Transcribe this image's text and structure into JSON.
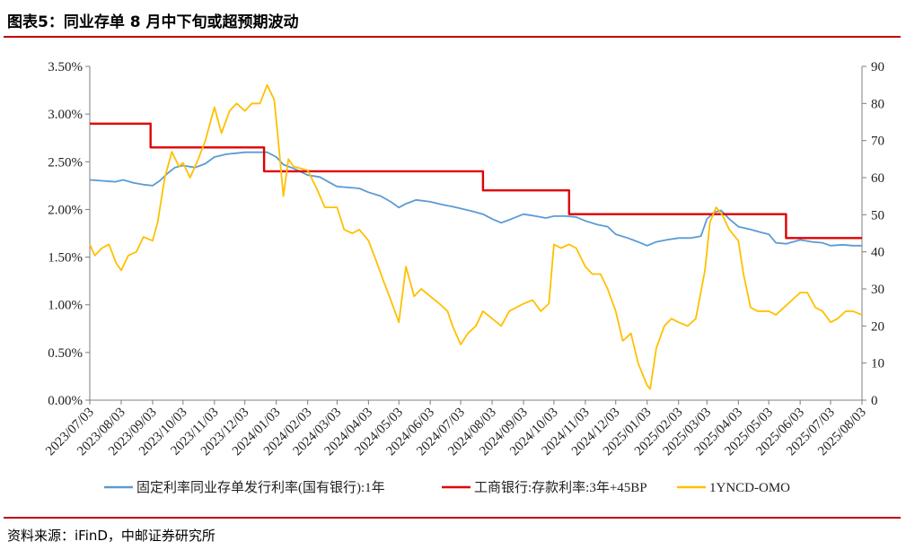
{
  "figure": {
    "title": "图表5：同业存单 8 月中下旬或超预期波动",
    "source": "资料来源：iFinD，中邮证券研究所"
  },
  "chart_data": {
    "type": "line",
    "x_range": [
      "2023-07-03",
      "2025-08-03"
    ],
    "x_ticks": [
      "2023/07/03",
      "2023/08/03",
      "2023/09/03",
      "2023/10/03",
      "2023/11/03",
      "2023/12/03",
      "2024/01/03",
      "2024/02/03",
      "2024/03/03",
      "2024/04/03",
      "2024/05/03",
      "2024/06/03",
      "2024/07/03",
      "2024/08/03",
      "2024/09/03",
      "2024/10/03",
      "2024/11/03",
      "2024/12/03",
      "2025/01/03",
      "2025/02/03",
      "2025/03/03",
      "2025/04/03",
      "2025/05/03",
      "2025/06/03",
      "2025/07/03",
      "2025/08/03"
    ],
    "y_left": {
      "min": 0,
      "max": 3.5,
      "ticks": [
        "0.00%",
        "0.50%",
        "1.00%",
        "1.50%",
        "2.00%",
        "2.50%",
        "3.00%",
        "3.50%"
      ]
    },
    "y_right": {
      "min": 0,
      "max": 90,
      "ticks": [
        "0",
        "10",
        "20",
        "30",
        "40",
        "50",
        "60",
        "70",
        "80",
        "90"
      ]
    },
    "grid": false,
    "legend_position": "bottom",
    "series": [
      {
        "name": "固定利率同业存单发行利率(国有银行):1年",
        "axis": "left",
        "color": "#5b9bd5",
        "points": [
          [
            "2023-07-03",
            2.31
          ],
          [
            "2023-07-15",
            2.3
          ],
          [
            "2023-07-28",
            2.29
          ],
          [
            "2023-08-05",
            2.31
          ],
          [
            "2023-08-15",
            2.28
          ],
          [
            "2023-08-25",
            2.26
          ],
          [
            "2023-09-03",
            2.25
          ],
          [
            "2023-09-10",
            2.3
          ],
          [
            "2023-09-18",
            2.38
          ],
          [
            "2023-09-25",
            2.44
          ],
          [
            "2023-10-03",
            2.46
          ],
          [
            "2023-10-15",
            2.44
          ],
          [
            "2023-10-25",
            2.48
          ],
          [
            "2023-11-03",
            2.55
          ],
          [
            "2023-11-15",
            2.58
          ],
          [
            "2023-11-25",
            2.59
          ],
          [
            "2023-12-03",
            2.6
          ],
          [
            "2023-12-15",
            2.6
          ],
          [
            "2023-12-25",
            2.6
          ],
          [
            "2024-01-03",
            2.55
          ],
          [
            "2024-01-10",
            2.47
          ],
          [
            "2024-01-20",
            2.43
          ],
          [
            "2024-02-03",
            2.36
          ],
          [
            "2024-02-15",
            2.34
          ],
          [
            "2024-02-25",
            2.28
          ],
          [
            "2024-03-03",
            2.24
          ],
          [
            "2024-03-15",
            2.23
          ],
          [
            "2024-03-25",
            2.22
          ],
          [
            "2024-04-03",
            2.18
          ],
          [
            "2024-04-15",
            2.14
          ],
          [
            "2024-04-25",
            2.08
          ],
          [
            "2024-05-03",
            2.02
          ],
          [
            "2024-05-10",
            2.06
          ],
          [
            "2024-05-20",
            2.1
          ],
          [
            "2024-06-03",
            2.08
          ],
          [
            "2024-06-15",
            2.05
          ],
          [
            "2024-06-25",
            2.03
          ],
          [
            "2024-07-03",
            2.01
          ],
          [
            "2024-07-15",
            1.98
          ],
          [
            "2024-07-25",
            1.95
          ],
          [
            "2024-08-03",
            1.9
          ],
          [
            "2024-08-12",
            1.86
          ],
          [
            "2024-08-22",
            1.9
          ],
          [
            "2024-09-03",
            1.95
          ],
          [
            "2024-09-15",
            1.93
          ],
          [
            "2024-09-25",
            1.91
          ],
          [
            "2024-10-03",
            1.93
          ],
          [
            "2024-10-15",
            1.93
          ],
          [
            "2024-10-25",
            1.92
          ],
          [
            "2024-11-03",
            1.88
          ],
          [
            "2024-11-15",
            1.84
          ],
          [
            "2024-11-25",
            1.82
          ],
          [
            "2024-12-03",
            1.74
          ],
          [
            "2024-12-15",
            1.7
          ],
          [
            "2024-12-25",
            1.66
          ],
          [
            "2025-01-03",
            1.62
          ],
          [
            "2025-01-12",
            1.66
          ],
          [
            "2025-01-22",
            1.68
          ],
          [
            "2025-02-03",
            1.7
          ],
          [
            "2025-02-15",
            1.7
          ],
          [
            "2025-02-25",
            1.72
          ],
          [
            "2025-03-03",
            1.9
          ],
          [
            "2025-03-10",
            1.97
          ],
          [
            "2025-03-17",
            1.99
          ],
          [
            "2025-03-25",
            1.9
          ],
          [
            "2025-04-03",
            1.82
          ],
          [
            "2025-04-15",
            1.79
          ],
          [
            "2025-04-25",
            1.76
          ],
          [
            "2025-05-03",
            1.74
          ],
          [
            "2025-05-10",
            1.65
          ],
          [
            "2025-05-20",
            1.64
          ],
          [
            "2025-06-03",
            1.68
          ],
          [
            "2025-06-15",
            1.66
          ],
          [
            "2025-06-25",
            1.65
          ],
          [
            "2025-07-03",
            1.62
          ],
          [
            "2025-07-15",
            1.63
          ],
          [
            "2025-07-25",
            1.62
          ],
          [
            "2025-08-03",
            1.62
          ]
        ]
      },
      {
        "name": "工商银行:存款利率:3年+45BP",
        "axis": "left",
        "color": "#e00000",
        "points": [
          [
            "2023-07-03",
            2.9
          ],
          [
            "2023-09-01",
            2.9
          ],
          [
            "2023-09-01",
            2.65
          ],
          [
            "2023-12-22",
            2.65
          ],
          [
            "2023-12-22",
            2.4
          ],
          [
            "2024-07-25",
            2.4
          ],
          [
            "2024-07-25",
            2.2
          ],
          [
            "2024-10-18",
            2.2
          ],
          [
            "2024-10-18",
            1.95
          ],
          [
            "2025-05-20",
            1.95
          ],
          [
            "2025-05-20",
            1.7
          ],
          [
            "2025-08-03",
            1.7
          ]
        ]
      },
      {
        "name": "1YNCD-OMO",
        "axis": "right",
        "color": "#ffc000",
        "points": [
          [
            "2023-07-03",
            42
          ],
          [
            "2023-07-08",
            39
          ],
          [
            "2023-07-15",
            41
          ],
          [
            "2023-07-22",
            42
          ],
          [
            "2023-07-29",
            37
          ],
          [
            "2023-08-03",
            35
          ],
          [
            "2023-08-10",
            39
          ],
          [
            "2023-08-18",
            40
          ],
          [
            "2023-08-25",
            44
          ],
          [
            "2023-09-03",
            43
          ],
          [
            "2023-09-08",
            48
          ],
          [
            "2023-09-15",
            60
          ],
          [
            "2023-09-22",
            67
          ],
          [
            "2023-09-29",
            63
          ],
          [
            "2023-10-03",
            64
          ],
          [
            "2023-10-10",
            60
          ],
          [
            "2023-10-18",
            65
          ],
          [
            "2023-10-25",
            70
          ],
          [
            "2023-11-03",
            79
          ],
          [
            "2023-11-10",
            72
          ],
          [
            "2023-11-18",
            78
          ],
          [
            "2023-11-25",
            80
          ],
          [
            "2023-12-03",
            78
          ],
          [
            "2023-12-10",
            80
          ],
          [
            "2023-12-18",
            80
          ],
          [
            "2023-12-25",
            85
          ],
          [
            "2024-01-01",
            81
          ],
          [
            "2024-01-05",
            70
          ],
          [
            "2024-01-10",
            55
          ],
          [
            "2024-01-15",
            65
          ],
          [
            "2024-01-20",
            63
          ],
          [
            "2024-02-03",
            62
          ],
          [
            "2024-02-12",
            57
          ],
          [
            "2024-02-20",
            52
          ],
          [
            "2024-03-03",
            52
          ],
          [
            "2024-03-10",
            46
          ],
          [
            "2024-03-18",
            45
          ],
          [
            "2024-03-25",
            46
          ],
          [
            "2024-04-03",
            43
          ],
          [
            "2024-04-10",
            38
          ],
          [
            "2024-04-18",
            32
          ],
          [
            "2024-04-25",
            27
          ],
          [
            "2024-05-03",
            21
          ],
          [
            "2024-05-10",
            36
          ],
          [
            "2024-05-18",
            28
          ],
          [
            "2024-05-25",
            30
          ],
          [
            "2024-06-03",
            28
          ],
          [
            "2024-06-12",
            26
          ],
          [
            "2024-06-20",
            24
          ],
          [
            "2024-06-25",
            20
          ],
          [
            "2024-07-03",
            15
          ],
          [
            "2024-07-10",
            18
          ],
          [
            "2024-07-18",
            20
          ],
          [
            "2024-07-25",
            24
          ],
          [
            "2024-08-03",
            22
          ],
          [
            "2024-08-12",
            20
          ],
          [
            "2024-08-20",
            24
          ],
          [
            "2024-09-03",
            26
          ],
          [
            "2024-09-12",
            27
          ],
          [
            "2024-09-20",
            24
          ],
          [
            "2024-09-28",
            26
          ],
          [
            "2024-10-03",
            42
          ],
          [
            "2024-10-10",
            41
          ],
          [
            "2024-10-18",
            42
          ],
          [
            "2024-10-25",
            41
          ],
          [
            "2024-11-03",
            36
          ],
          [
            "2024-11-10",
            34
          ],
          [
            "2024-11-18",
            34
          ],
          [
            "2024-11-25",
            30
          ],
          [
            "2024-12-03",
            24
          ],
          [
            "2024-12-10",
            16
          ],
          [
            "2024-12-18",
            18
          ],
          [
            "2024-12-25",
            10
          ],
          [
            "2025-01-03",
            4
          ],
          [
            "2025-01-06",
            3
          ],
          [
            "2025-01-12",
            14
          ],
          [
            "2025-01-20",
            20
          ],
          [
            "2025-01-27",
            22
          ],
          [
            "2025-02-03",
            21
          ],
          [
            "2025-02-12",
            20
          ],
          [
            "2025-02-20",
            22
          ],
          [
            "2025-03-01",
            35
          ],
          [
            "2025-03-06",
            48
          ],
          [
            "2025-03-12",
            52
          ],
          [
            "2025-03-18",
            50
          ],
          [
            "2025-03-25",
            46
          ],
          [
            "2025-04-03",
            43
          ],
          [
            "2025-04-08",
            34
          ],
          [
            "2025-04-15",
            25
          ],
          [
            "2025-04-22",
            24
          ],
          [
            "2025-05-03",
            24
          ],
          [
            "2025-05-10",
            23
          ],
          [
            "2025-05-18",
            25
          ],
          [
            "2025-06-03",
            29
          ],
          [
            "2025-06-10",
            29
          ],
          [
            "2025-06-18",
            25
          ],
          [
            "2025-06-25",
            24
          ],
          [
            "2025-07-03",
            21
          ],
          [
            "2025-07-10",
            22
          ],
          [
            "2025-07-18",
            24
          ],
          [
            "2025-07-25",
            24
          ],
          [
            "2025-08-03",
            23
          ]
        ]
      }
    ]
  }
}
